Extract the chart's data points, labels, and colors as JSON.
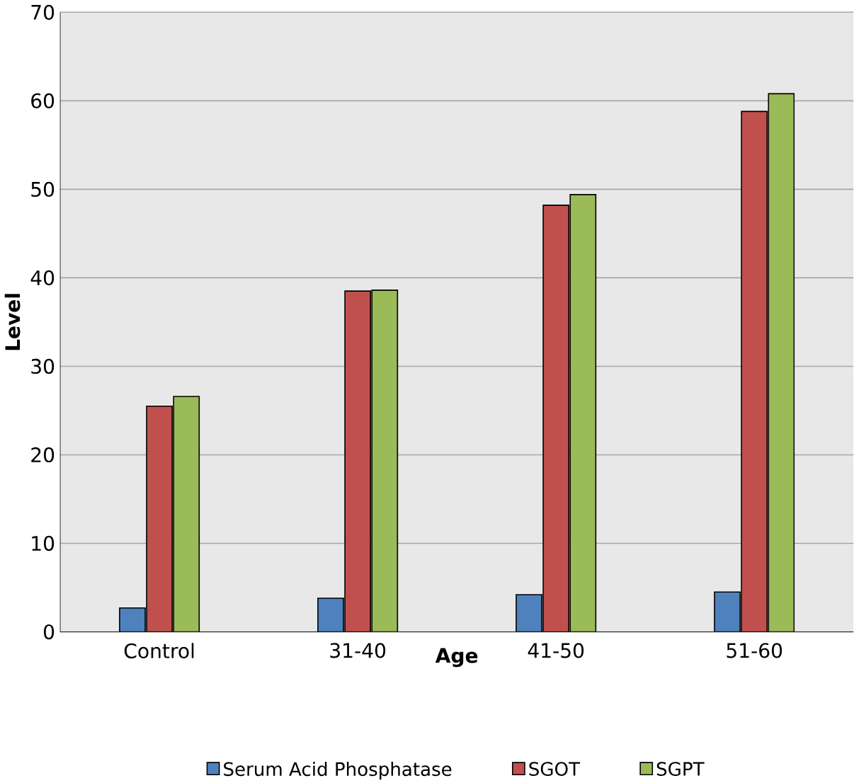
{
  "chart_data": {
    "type": "bar",
    "xlabel": "Age",
    "ylabel": "Level",
    "categories": [
      "Control",
      "31-40",
      "41-50",
      "51-60"
    ],
    "series": [
      {
        "name": "Serum Acid Phosphatase",
        "color": "#4f81bd",
        "values": [
          2.7,
          3.8,
          4.2,
          4.5
        ]
      },
      {
        "name": "SGOT",
        "color": "#c0504d",
        "values": [
          25.5,
          38.5,
          48.2,
          58.8
        ]
      },
      {
        "name": "SGPT",
        "color": "#9bbb59",
        "values": [
          26.6,
          38.6,
          49.4,
          60.8
        ]
      }
    ],
    "ylim": [
      0,
      70
    ],
    "yticks": [
      0,
      10,
      20,
      30,
      40,
      50,
      60,
      70
    ],
    "grid": "y",
    "legend": "bottom"
  }
}
